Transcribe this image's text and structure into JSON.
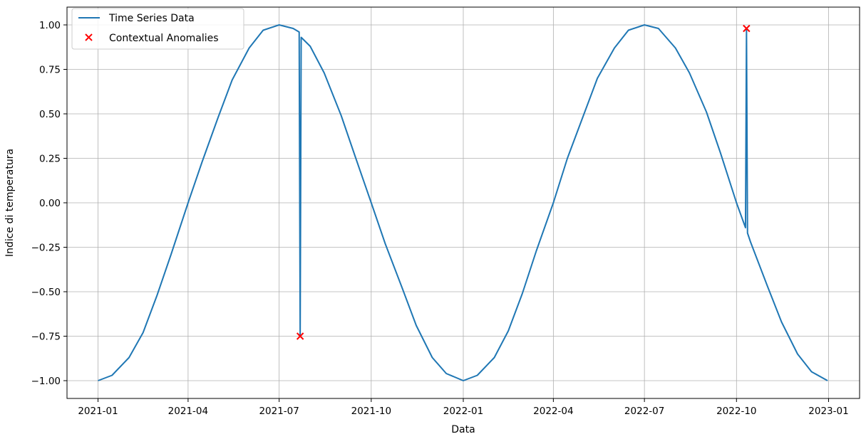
{
  "chart_data": {
    "type": "line",
    "title": "",
    "xlabel": "Data",
    "ylabel": "Indice di temperatura",
    "grid": true,
    "legend_position": "top-left",
    "x_range": [
      "2020-12-01",
      "2023-02-01"
    ],
    "ylim": [
      -1.1,
      1.1
    ],
    "x_ticks": [
      {
        "date": "2021-01-01",
        "label": "2021-01"
      },
      {
        "date": "2021-04-01",
        "label": "2021-04"
      },
      {
        "date": "2021-07-01",
        "label": "2021-07"
      },
      {
        "date": "2021-10-01",
        "label": "2021-10"
      },
      {
        "date": "2022-01-01",
        "label": "2022-01"
      },
      {
        "date": "2022-04-01",
        "label": "2022-04"
      },
      {
        "date": "2022-07-01",
        "label": "2022-07"
      },
      {
        "date": "2022-10-01",
        "label": "2022-10"
      },
      {
        "date": "2023-01-01",
        "label": "2023-01"
      }
    ],
    "y_ticks": [
      {
        "value": 1.0,
        "label": "1.00"
      },
      {
        "value": 0.75,
        "label": "0.75"
      },
      {
        "value": 0.5,
        "label": "0.50"
      },
      {
        "value": 0.25,
        "label": "0.25"
      },
      {
        "value": 0.0,
        "label": "0.00"
      },
      {
        "value": -0.25,
        "label": "−0.25"
      },
      {
        "value": -0.5,
        "label": "−0.50"
      },
      {
        "value": -0.75,
        "label": "−0.75"
      },
      {
        "value": -1.0,
        "label": "−1.00"
      }
    ],
    "series": [
      {
        "name": "Time Series Data",
        "kind": "line",
        "color": "#1f77b4",
        "x": [
          "2021-01-01",
          "2021-01-15",
          "2021-02-01",
          "2021-02-15",
          "2021-03-01",
          "2021-03-15",
          "2021-04-01",
          "2021-04-15",
          "2021-05-01",
          "2021-05-15",
          "2021-06-01",
          "2021-06-15",
          "2021-07-01",
          "2021-07-15",
          "2021-07-21",
          "2021-07-22",
          "2021-07-23",
          "2021-08-01",
          "2021-08-15",
          "2021-09-01",
          "2021-09-15",
          "2021-10-01",
          "2021-10-15",
          "2021-11-01",
          "2021-11-15",
          "2021-12-01",
          "2021-12-15",
          "2022-01-01",
          "2022-01-15",
          "2022-02-01",
          "2022-02-15",
          "2022-03-01",
          "2022-03-15",
          "2022-04-01",
          "2022-04-15",
          "2022-05-01",
          "2022-05-15",
          "2022-06-01",
          "2022-06-15",
          "2022-07-01",
          "2022-07-15",
          "2022-08-01",
          "2022-08-15",
          "2022-09-01",
          "2022-09-15",
          "2022-10-01",
          "2022-10-10",
          "2022-10-11",
          "2022-10-12",
          "2022-10-15",
          "2022-11-01",
          "2022-11-15",
          "2022-12-01",
          "2022-12-15",
          "2022-12-31"
        ],
        "y": [
          -1.0,
          -0.97,
          -0.87,
          -0.73,
          -0.52,
          -0.29,
          0.0,
          0.23,
          0.48,
          0.69,
          0.87,
          0.97,
          1.0,
          0.98,
          0.96,
          -0.75,
          0.93,
          0.88,
          0.73,
          0.49,
          0.26,
          0.0,
          -0.23,
          -0.48,
          -0.69,
          -0.87,
          -0.96,
          -1.0,
          -0.97,
          -0.87,
          -0.72,
          -0.51,
          -0.27,
          0.0,
          0.25,
          0.49,
          0.7,
          0.87,
          0.97,
          1.0,
          0.98,
          0.87,
          0.73,
          0.51,
          0.28,
          0.0,
          -0.14,
          0.98,
          -0.17,
          -0.22,
          -0.47,
          -0.67,
          -0.85,
          -0.95,
          -1.0
        ]
      },
      {
        "name": "Contextual Anomalies",
        "kind": "scatter",
        "marker": "x",
        "color": "#ff0000",
        "x": [
          "2021-07-22",
          "2022-10-11"
        ],
        "y": [
          -0.75,
          0.98
        ]
      }
    ]
  }
}
